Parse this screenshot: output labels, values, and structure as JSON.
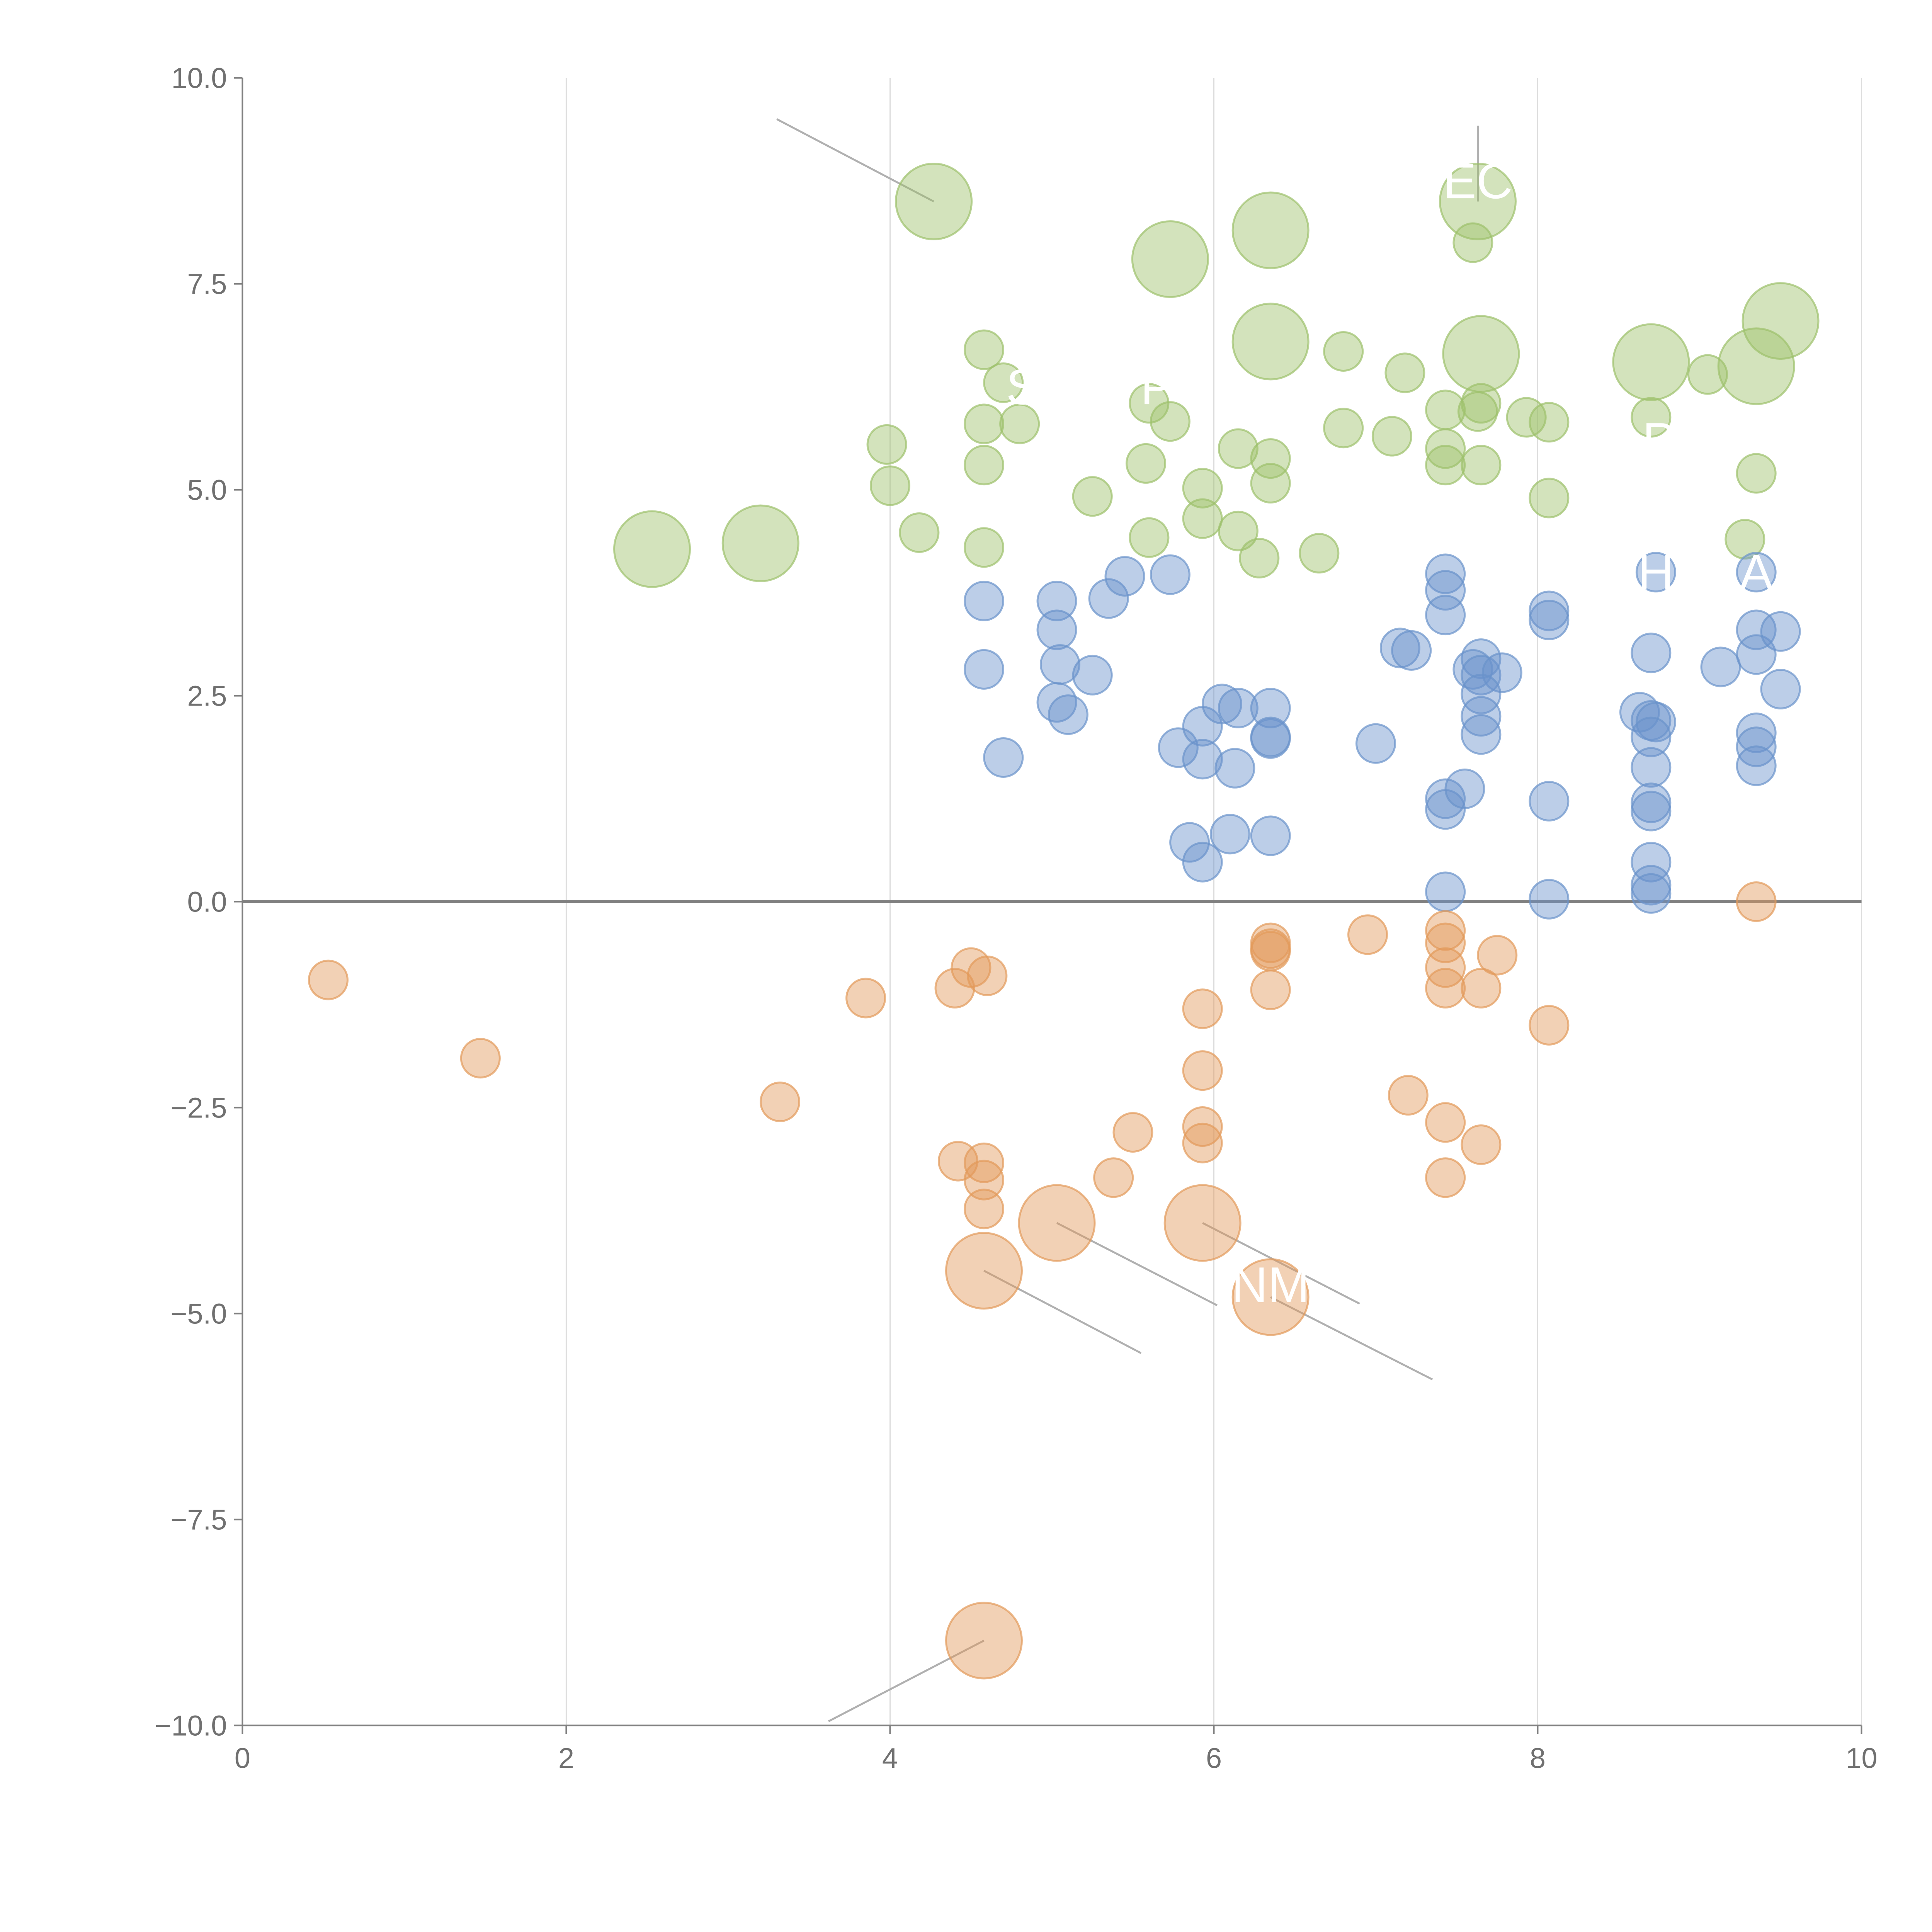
{
  "chart_data": {
    "type": "scatter",
    "title": "",
    "xlabel": "",
    "ylabel": "",
    "xlim": [
      0,
      10
    ],
    "ylim": [
      -10,
      10
    ],
    "grid": "vertical",
    "x_ticks": [
      0,
      2,
      4,
      6,
      8,
      10
    ],
    "x_tick_labels": [
      "0",
      "2",
      "4",
      "6",
      "8",
      "10"
    ],
    "y_ticks": [
      10,
      7.5,
      5,
      2.5,
      0,
      -2.5,
      -5,
      -7.5,
      -10
    ],
    "y_tick_labels": [
      "10.0",
      "7.5",
      "5.0",
      "2.5",
      "0.0",
      "−2.5",
      "−5.0",
      "−7.5",
      "−10.0"
    ],
    "colors": {
      "green": "#9dc06b",
      "blue": "#6a93cb",
      "orange": "#e39a5a",
      "axis": "#808080",
      "grid": "#dddddd",
      "leader": "#b0b0b0"
    },
    "series": [
      {
        "name": "green",
        "color": "#9dc06b",
        "points": [
          [
            4.27,
            8.5,
            2
          ],
          [
            5.73,
            7.8,
            2
          ],
          [
            6.35,
            8.15,
            2
          ],
          [
            7.63,
            8.5,
            2
          ],
          [
            7.6,
            8.0,
            1
          ],
          [
            6.35,
            6.8,
            2
          ],
          [
            7.65,
            6.65,
            2
          ],
          [
            8.7,
            6.55,
            2
          ],
          [
            9.35,
            6.5,
            2
          ],
          [
            9.5,
            7.05,
            2
          ],
          [
            2.53,
            4.28,
            2
          ],
          [
            3.2,
            4.35,
            2
          ],
          [
            4.58,
            6.7,
            1
          ],
          [
            4.7,
            6.3,
            1
          ],
          [
            4.58,
            5.8,
            1
          ],
          [
            4.8,
            5.8,
            1
          ],
          [
            3.98,
            5.55,
            1
          ],
          [
            4.58,
            5.3,
            1
          ],
          [
            4.0,
            5.05,
            1
          ],
          [
            4.18,
            4.48,
            1
          ],
          [
            4.58,
            4.3,
            1
          ],
          [
            5.25,
            4.92,
            1
          ],
          [
            5.58,
            5.32,
            1
          ],
          [
            5.6,
            6.05,
            1
          ],
          [
            5.73,
            5.83,
            1
          ],
          [
            5.93,
            5.02,
            1
          ],
          [
            5.93,
            4.65,
            1
          ],
          [
            5.6,
            4.42,
            1
          ],
          [
            6.15,
            4.5,
            1
          ],
          [
            6.15,
            5.5,
            1
          ],
          [
            6.35,
            5.38,
            1
          ],
          [
            6.35,
            5.08,
            1
          ],
          [
            6.28,
            4.17,
            1
          ],
          [
            6.65,
            4.23,
            1
          ],
          [
            6.8,
            6.68,
            1
          ],
          [
            6.8,
            5.75,
            1
          ],
          [
            7.1,
            5.65,
            1
          ],
          [
            7.18,
            6.42,
            1
          ],
          [
            7.43,
            5.97,
            1
          ],
          [
            7.43,
            5.5,
            1
          ],
          [
            7.43,
            5.3,
            1
          ],
          [
            7.63,
            5.95,
            1
          ],
          [
            7.65,
            6.05,
            1
          ],
          [
            7.65,
            5.3,
            1
          ],
          [
            7.93,
            5.88,
            1
          ],
          [
            8.07,
            5.82,
            1
          ],
          [
            8.07,
            4.9,
            1
          ],
          [
            8.7,
            5.88,
            1
          ],
          [
            9.05,
            6.4,
            1
          ],
          [
            9.35,
            5.2,
            1
          ],
          [
            9.28,
            4.4,
            1
          ]
        ]
      },
      {
        "name": "blue",
        "color": "#6a93cb",
        "points": [
          [
            4.58,
            3.65,
            1
          ],
          [
            4.58,
            2.82,
            1
          ],
          [
            4.7,
            1.75,
            1
          ],
          [
            5.03,
            3.65,
            1
          ],
          [
            5.03,
            3.3,
            1
          ],
          [
            5.05,
            2.88,
            1
          ],
          [
            5.03,
            2.42,
            1
          ],
          [
            5.1,
            2.27,
            1
          ],
          [
            5.25,
            2.75,
            1
          ],
          [
            5.35,
            3.68,
            1
          ],
          [
            5.45,
            3.95,
            1
          ],
          [
            5.73,
            3.97,
            1
          ],
          [
            5.78,
            1.87,
            1
          ],
          [
            5.93,
            2.13,
            1
          ],
          [
            5.93,
            1.73,
            1
          ],
          [
            6.05,
            2.4,
            1
          ],
          [
            6.15,
            2.35,
            1
          ],
          [
            6.13,
            1.62,
            1
          ],
          [
            6.35,
            2.35,
            1
          ],
          [
            6.35,
            1.98,
            1
          ],
          [
            6.35,
            2.0,
            1
          ],
          [
            5.85,
            0.72,
            1
          ],
          [
            5.93,
            0.48,
            1
          ],
          [
            6.1,
            0.82,
            1
          ],
          [
            6.35,
            0.8,
            1
          ],
          [
            7.0,
            1.92,
            1
          ],
          [
            7.15,
            3.08,
            1
          ],
          [
            7.22,
            3.05,
            1
          ],
          [
            7.43,
            3.98,
            1
          ],
          [
            7.43,
            3.78,
            1
          ],
          [
            7.43,
            3.48,
            1
          ],
          [
            7.65,
            2.95,
            1
          ],
          [
            7.6,
            2.82,
            1
          ],
          [
            7.65,
            2.75,
            1
          ],
          [
            7.78,
            2.78,
            1
          ],
          [
            7.65,
            2.52,
            1
          ],
          [
            7.65,
            2.25,
            1
          ],
          [
            7.65,
            2.03,
            1
          ],
          [
            7.43,
            1.25,
            1
          ],
          [
            7.43,
            1.12,
            1
          ],
          [
            7.55,
            1.37,
            1
          ],
          [
            7.43,
            0.12,
            1
          ],
          [
            8.07,
            3.53,
            1
          ],
          [
            8.07,
            3.42,
            1
          ],
          [
            8.07,
            1.22,
            1
          ],
          [
            8.07,
            0.03,
            1
          ],
          [
            8.7,
            3.02,
            1
          ],
          [
            8.63,
            2.3,
            1
          ],
          [
            8.7,
            2.2,
            1
          ],
          [
            8.73,
            2.18,
            1
          ],
          [
            8.7,
            2.0,
            1
          ],
          [
            8.7,
            1.63,
            1
          ],
          [
            8.7,
            1.2,
            1
          ],
          [
            8.7,
            1.1,
            1
          ],
          [
            8.7,
            0.48,
            1
          ],
          [
            8.7,
            0.2,
            1
          ],
          [
            8.7,
            0.1,
            1
          ],
          [
            8.73,
            4.0,
            1
          ],
          [
            9.13,
            2.85,
            1
          ],
          [
            9.35,
            4.0,
            1
          ],
          [
            9.35,
            3.3,
            1
          ],
          [
            9.35,
            3.0,
            1
          ],
          [
            9.35,
            2.05,
            1
          ],
          [
            9.35,
            1.88,
            1
          ],
          [
            9.35,
            1.65,
            1
          ],
          [
            9.5,
            3.28,
            1
          ],
          [
            9.5,
            2.58,
            1
          ]
        ]
      },
      {
        "name": "orange",
        "color": "#e39a5a",
        "points": [
          [
            0.53,
            -0.95,
            1
          ],
          [
            1.47,
            -1.9,
            1
          ],
          [
            3.32,
            -2.43,
            1
          ],
          [
            3.85,
            -1.17,
            1
          ],
          [
            4.4,
            -1.05,
            1
          ],
          [
            4.5,
            -0.8,
            1
          ],
          [
            4.6,
            -0.9,
            1
          ],
          [
            4.42,
            -3.15,
            1
          ],
          [
            4.58,
            -3.17,
            1
          ],
          [
            4.58,
            -3.38,
            1
          ],
          [
            4.58,
            -3.73,
            1
          ],
          [
            5.03,
            -3.9,
            2
          ],
          [
            4.58,
            -4.48,
            2
          ],
          [
            4.58,
            -8.97,
            2
          ],
          [
            5.38,
            -3.35,
            1
          ],
          [
            5.5,
            -2.8,
            1
          ],
          [
            5.93,
            -1.3,
            1
          ],
          [
            5.93,
            -2.05,
            1
          ],
          [
            5.93,
            -2.73,
            1
          ],
          [
            5.93,
            -2.93,
            1
          ],
          [
            5.93,
            -3.9,
            2
          ],
          [
            6.35,
            -4.8,
            2
          ],
          [
            6.35,
            -0.5,
            1
          ],
          [
            6.35,
            -0.57,
            1
          ],
          [
            6.35,
            -0.6,
            1
          ],
          [
            6.35,
            -1.07,
            1
          ],
          [
            6.95,
            -0.4,
            1
          ],
          [
            7.2,
            -2.35,
            1
          ],
          [
            7.43,
            -0.35,
            1
          ],
          [
            7.43,
            -0.5,
            1
          ],
          [
            7.43,
            -0.8,
            1
          ],
          [
            7.43,
            -1.05,
            1
          ],
          [
            7.43,
            -2.68,
            1
          ],
          [
            7.43,
            -3.35,
            1
          ],
          [
            7.65,
            -1.05,
            1
          ],
          [
            7.65,
            -2.95,
            1
          ],
          [
            7.75,
            -0.65,
            1
          ],
          [
            8.07,
            -1.5,
            1
          ],
          [
            9.35,
            0.0,
            1
          ]
        ]
      }
    ],
    "labels": [
      {
        "text": "EC",
        "x": 7.63,
        "y": 8.75
      },
      {
        "text": "S",
        "x": 4.82,
        "y": 6.25
      },
      {
        "text": "P",
        "x": 5.65,
        "y": 6.25
      },
      {
        "text": "P",
        "x": 8.75,
        "y": 5.6
      },
      {
        "text": "H",
        "x": 8.73,
        "y": 4.0
      },
      {
        "text": "A",
        "x": 9.35,
        "y": 4.0
      },
      {
        "text": "NM",
        "x": 6.35,
        "y": -4.65
      }
    ],
    "leaders": [
      [
        4.27,
        8.5,
        3.3,
        9.5
      ],
      [
        7.63,
        8.5,
        7.63,
        9.42
      ],
      [
        4.58,
        -8.97,
        3.62,
        -9.95
      ],
      [
        5.03,
        -3.9,
        6.02,
        -4.9
      ],
      [
        5.93,
        -3.9,
        6.9,
        -4.88
      ],
      [
        6.35,
        -4.8,
        7.35,
        -5.8
      ],
      [
        4.58,
        -4.48,
        5.55,
        -5.48
      ]
    ]
  }
}
